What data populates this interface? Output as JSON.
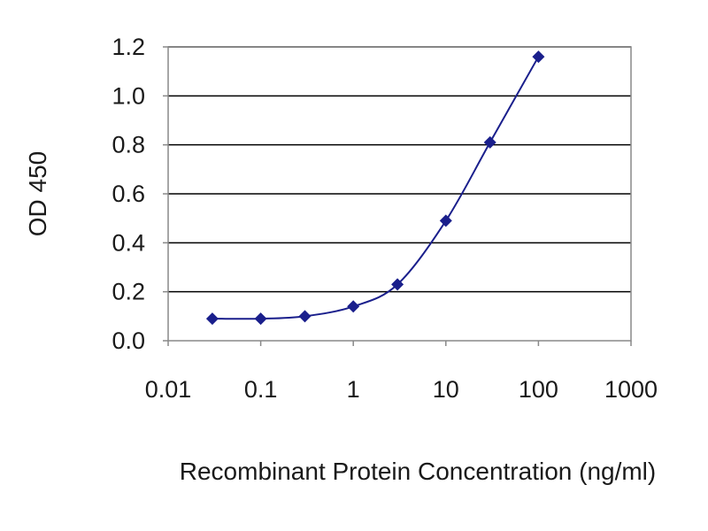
{
  "chart_data": {
    "type": "scatter",
    "xscale": "log",
    "xlabel": "Recombinant Protein Concentration (ng/ml)",
    "ylabel": "OD 450",
    "xlim": [
      0.01,
      1000
    ],
    "ylim": [
      0.0,
      1.2
    ],
    "xticks": [
      "0.01",
      "0.1",
      "1",
      "10",
      "100",
      "1000"
    ],
    "yticks": [
      "0.0",
      "0.2",
      "0.4",
      "0.6",
      "0.8",
      "1.0",
      "1.2"
    ],
    "grid": true,
    "colors": {
      "series": "#1a1f8c",
      "grid": "#000000",
      "axis": "#888888"
    },
    "x": [
      0.03,
      0.1,
      0.3,
      1,
      3,
      10,
      30,
      100
    ],
    "y": [
      0.09,
      0.09,
      0.1,
      0.14,
      0.23,
      0.49,
      0.81,
      1.16
    ],
    "curve": "smooth-fit"
  }
}
